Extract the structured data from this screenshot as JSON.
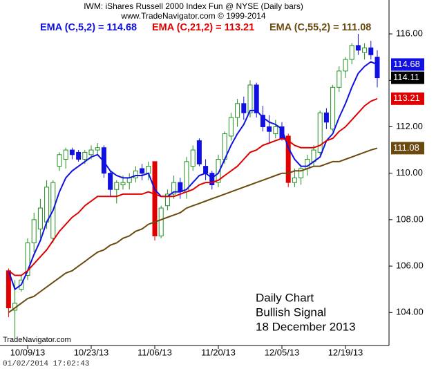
{
  "chart_data": {
    "type": "candlestick",
    "title": "IWM:  iShares Russell 2000 Index Fun @ NYSE  (Daily bars)",
    "subtitle": "www.TradeNavigator.com © 1999-2014",
    "watermark": "TradeNavigator.com",
    "timestamp": "01/02/2014 17:02:43",
    "annotations": [
      "Daily Chart",
      "Bullish Signal",
      "18 December 2013"
    ],
    "categories": [
      null,
      null,
      null,
      "10/09/13",
      null,
      null,
      null,
      null,
      null,
      null,
      null,
      null,
      null,
      "10/23/13",
      null,
      null,
      null,
      null,
      null,
      null,
      null,
      null,
      null,
      "11/06/13",
      null,
      null,
      null,
      null,
      null,
      null,
      null,
      null,
      null,
      "11/20/13",
      null,
      null,
      null,
      null,
      null,
      null,
      null,
      null,
      null,
      "12/05/13",
      null,
      null,
      null,
      null,
      null,
      null,
      null,
      null,
      null,
      "12/19/13",
      null,
      null,
      null,
      null,
      null
    ],
    "open": [
      105.8,
      104.1,
      105.0,
      105.6,
      107.0,
      107.6,
      107.9,
      107.2,
      110.3,
      110.6,
      111.0,
      110.9,
      110.6,
      110.8,
      111.0,
      111.1,
      110.0,
      109.3,
      109.5,
      109.6,
      109.8,
      110.2,
      110.0,
      110.5,
      107.3,
      108.6,
      109.1,
      109.6,
      109.2,
      110.3,
      111.4,
      110.3,
      110.0,
      109.6,
      110.6,
      111.6,
      112.4,
      113.0,
      112.6,
      113.8,
      112.5,
      112.0,
      111.7,
      112.0,
      111.6,
      109.6,
      109.8,
      110.2,
      110.5,
      110.9,
      112.6,
      111.9,
      113.7,
      114.4,
      114.9,
      115.5,
      115.2,
      115.4,
      115.0
    ],
    "high": [
      105.9,
      105.4,
      105.6,
      107.2,
      108.3,
      108.9,
      109.7,
      109.7,
      110.9,
      111.1,
      111.1,
      111.0,
      111.0,
      111.2,
      111.3,
      111.2,
      110.1,
      109.7,
      109.9,
      110.0,
      110.3,
      110.4,
      110.5,
      110.5,
      108.6,
      109.3,
      109.9,
      109.8,
      110.7,
      111.2,
      111.5,
      110.6,
      110.1,
      110.8,
      111.8,
      112.6,
      113.2,
      113.3,
      114.0,
      113.9,
      112.9,
      112.5,
      112.3,
      112.2,
      111.7,
      110.2,
      110.3,
      110.8,
      111.2,
      112.7,
      112.8,
      113.8,
      114.6,
      115.0,
      115.6,
      116.0,
      115.6,
      115.7,
      115.3
    ],
    "low": [
      103.8,
      102.9,
      104.9,
      105.4,
      106.6,
      107.2,
      107.6,
      107.0,
      110.1,
      110.2,
      110.6,
      110.5,
      110.4,
      110.6,
      110.8,
      109.8,
      109.0,
      108.7,
      109.3,
      109.3,
      109.6,
      109.7,
      109.7,
      107.1,
      107.2,
      108.4,
      108.9,
      108.9,
      108.9,
      110.1,
      110.3,
      109.7,
      109.3,
      109.4,
      110.4,
      111.4,
      112.0,
      112.3,
      112.4,
      112.4,
      111.8,
      111.3,
      111.5,
      111.4,
      109.4,
      109.4,
      109.5,
      109.9,
      110.3,
      110.8,
      111.9,
      111.8,
      113.5,
      114.1,
      114.7,
      115.1,
      114.9,
      114.9,
      113.7
    ],
    "close": [
      104.2,
      104.4,
      105.4,
      107.0,
      108.0,
      108.5,
      109.4,
      109.6,
      110.8,
      111.0,
      110.8,
      110.6,
      110.9,
      111.0,
      111.1,
      110.0,
      109.3,
      109.6,
      109.6,
      109.8,
      110.1,
      110.0,
      110.3,
      107.3,
      108.5,
      109.1,
      109.6,
      109.2,
      110.5,
      111.0,
      110.4,
      110.0,
      109.5,
      110.6,
      111.7,
      112.4,
      113.0,
      112.6,
      113.8,
      112.6,
      112.0,
      111.8,
      112.0,
      111.5,
      109.6,
      109.8,
      110.2,
      110.6,
      111.0,
      112.6,
      112.2,
      113.7,
      114.4,
      114.9,
      115.5,
      115.3,
      115.4,
      115.1,
      114.11
    ],
    "candle_colors": [
      "#e00000",
      "#1f8f1f",
      "#1f8f1f",
      "#1f8f1f",
      "#1f8f1f",
      "#1f8f1f",
      "#1f8f1f",
      "#1f8f1f",
      "#1f8f1f",
      "#1f8f1f",
      "#1010e0",
      "#1010e0",
      "#1f8f1f",
      "#1f8f1f",
      "#1f8f1f",
      "#1010e0",
      "#1010e0",
      "#1f8f1f",
      "#1f8f1f",
      "#1f8f1f",
      "#1f8f1f",
      "#1010e0",
      "#1f8f1f",
      "#e00000",
      "#1f8f1f",
      "#1f8f1f",
      "#1f8f1f",
      "#1010e0",
      "#1f8f1f",
      "#1f8f1f",
      "#1010e0",
      "#1010e0",
      "#1010e0",
      "#1f8f1f",
      "#1f8f1f",
      "#1f8f1f",
      "#1f8f1f",
      "#1010e0",
      "#1f8f1f",
      "#1010e0",
      "#1010e0",
      "#1010e0",
      "#1f8f1f",
      "#1010e0",
      "#e00000",
      "#1f8f1f",
      "#1f8f1f",
      "#1f8f1f",
      "#1f8f1f",
      "#1f8f1f",
      "#1010e0",
      "#1f8f1f",
      "#1f8f1f",
      "#1f8f1f",
      "#1f8f1f",
      "#1010e0",
      "#1f8f1f",
      "#1010e0",
      "#1010e0"
    ],
    "series": [
      {
        "name": "EMA (C,5,2) = 114.68",
        "color": "#1010e0",
        "values": [
          105.8,
          105.0,
          105.2,
          105.8,
          106.5,
          107.1,
          107.9,
          108.4,
          109.2,
          109.8,
          110.1,
          110.3,
          110.5,
          110.7,
          110.8,
          110.5,
          110.1,
          109.9,
          109.8,
          109.8,
          109.9,
          109.9,
          110.0,
          109.3,
          109.0,
          109.0,
          109.2,
          109.2,
          109.3,
          109.6,
          109.9,
          110.0,
          109.8,
          110.0,
          110.6,
          111.2,
          111.7,
          112.1,
          112.7,
          112.7,
          112.4,
          112.2,
          112.1,
          111.9,
          111.1,
          110.6,
          110.3,
          110.3,
          110.5,
          110.7,
          111.4,
          111.7,
          112.4,
          113.0,
          113.7,
          114.3,
          114.6,
          114.8,
          114.68
        ]
      },
      {
        "name": "EMA (C,21,2) = 113.21",
        "color": "#e00000",
        "values": [
          105.8,
          105.6,
          105.6,
          105.8,
          106.1,
          106.4,
          106.7,
          107.1,
          107.5,
          107.8,
          108.1,
          108.3,
          108.6,
          108.8,
          109.0,
          109.0,
          109.0,
          109.0,
          109.1,
          109.1,
          109.1,
          109.1,
          109.2,
          109.1,
          109.0,
          109.0,
          109.0,
          109.1,
          109.2,
          109.3,
          109.5,
          109.6,
          109.6,
          109.7,
          109.9,
          110.1,
          110.3,
          110.6,
          110.9,
          111.0,
          111.2,
          111.3,
          111.4,
          111.5,
          111.4,
          111.2,
          111.1,
          111.1,
          111.1,
          111.2,
          111.4,
          111.5,
          111.8,
          112.0,
          112.3,
          112.6,
          112.9,
          113.1,
          113.21
        ]
      },
      {
        "name": "EMA (C,55,2) = 111.08",
        "color": "#6b4a10",
        "values": [
          104.0,
          104.2,
          104.4,
          104.6,
          104.7,
          104.9,
          105.1,
          105.3,
          105.5,
          105.7,
          105.8,
          106.0,
          106.2,
          106.4,
          106.6,
          106.7,
          106.9,
          107.0,
          107.2,
          107.3,
          107.5,
          107.6,
          107.8,
          107.9,
          108.0,
          108.1,
          108.2,
          108.3,
          108.5,
          108.6,
          108.7,
          108.8,
          108.9,
          109.0,
          109.1,
          109.2,
          109.3,
          109.4,
          109.5,
          109.6,
          109.7,
          109.8,
          109.9,
          110.0,
          110.0,
          110.1,
          110.1,
          110.2,
          110.3,
          110.3,
          110.4,
          110.5,
          110.5,
          110.6,
          110.7,
          110.8,
          110.9,
          111.0,
          111.08
        ]
      }
    ],
    "price_boxes": [
      {
        "value": 114.68,
        "color": "#1010e0",
        "text_color": "#ffffff"
      },
      {
        "value": 114.11,
        "color": "#000000",
        "text_color": "#ffffff"
      },
      {
        "value": 113.21,
        "color": "#e00000",
        "text_color": "#ffffff"
      },
      {
        "value": 111.08,
        "color": "#6b4a10",
        "text_color": "#ffffff"
      }
    ],
    "ylim": [
      102.58,
      117.46
    ],
    "yticks": [
      {
        "value": 104,
        "label": "104.00"
      },
      {
        "value": 106,
        "label": "106.00"
      },
      {
        "value": 108,
        "label": "108.00"
      },
      {
        "value": 110,
        "label": "110.00"
      },
      {
        "value": 112,
        "label": "112.00"
      },
      {
        "value": 114,
        "label": "114.00"
      },
      {
        "value": 116,
        "label": "116.00"
      }
    ],
    "grid": false
  }
}
